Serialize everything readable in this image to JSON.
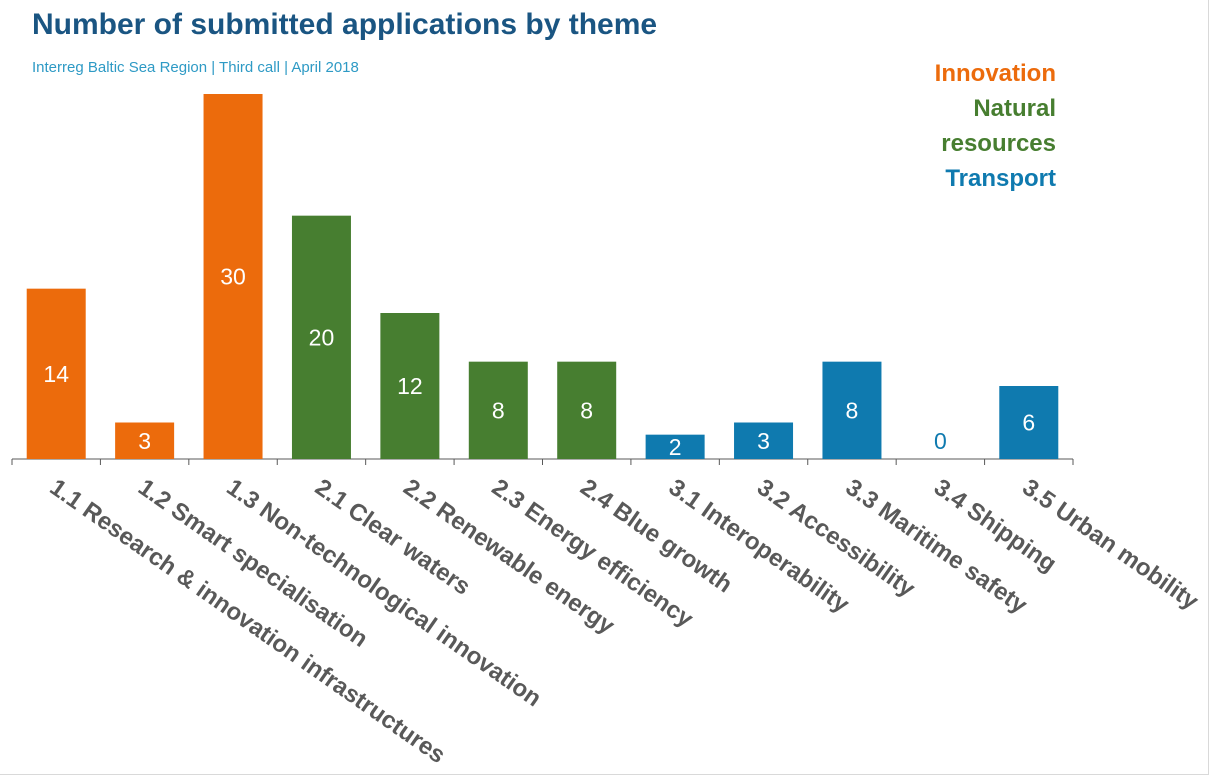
{
  "chart_data": {
    "type": "bar",
    "title": "Number of submitted applications by theme",
    "subtitle": "Interreg Baltic Sea Region  |  Third call  |  April 2018",
    "categories": [
      "1.1 Research & innovation infrastructures",
      "1.2 Smart specialisation",
      "1.3 Non-technological innovation",
      "2.1 Clear waters",
      "2.2 Renewable energy",
      "2.3 Energy efficiency",
      "2.4 Blue growth",
      "3.1 Interoperability",
      "3.2 Accessibility",
      "3.3 Maritime safety",
      "3.4 Shipping",
      "3.5 Urban mobility"
    ],
    "values": [
      14,
      3,
      30,
      20,
      12,
      8,
      8,
      2,
      3,
      8,
      0,
      6
    ],
    "groups": [
      "Innovation",
      "Innovation",
      "Innovation",
      "Natural resources",
      "Natural resources",
      "Natural resources",
      "Natural resources",
      "Transport",
      "Transport",
      "Transport",
      "Transport",
      "Transport"
    ],
    "legend": [
      {
        "name": "Innovation",
        "color": "#ec6b0c"
      },
      {
        "name": "Natural resources",
        "color": "#477e30"
      },
      {
        "name": "Transport",
        "color": "#0f7aaf"
      }
    ],
    "legend_position": "top-right",
    "ylim": [
      0,
      30
    ],
    "grid": false,
    "data_labels": true
  }
}
